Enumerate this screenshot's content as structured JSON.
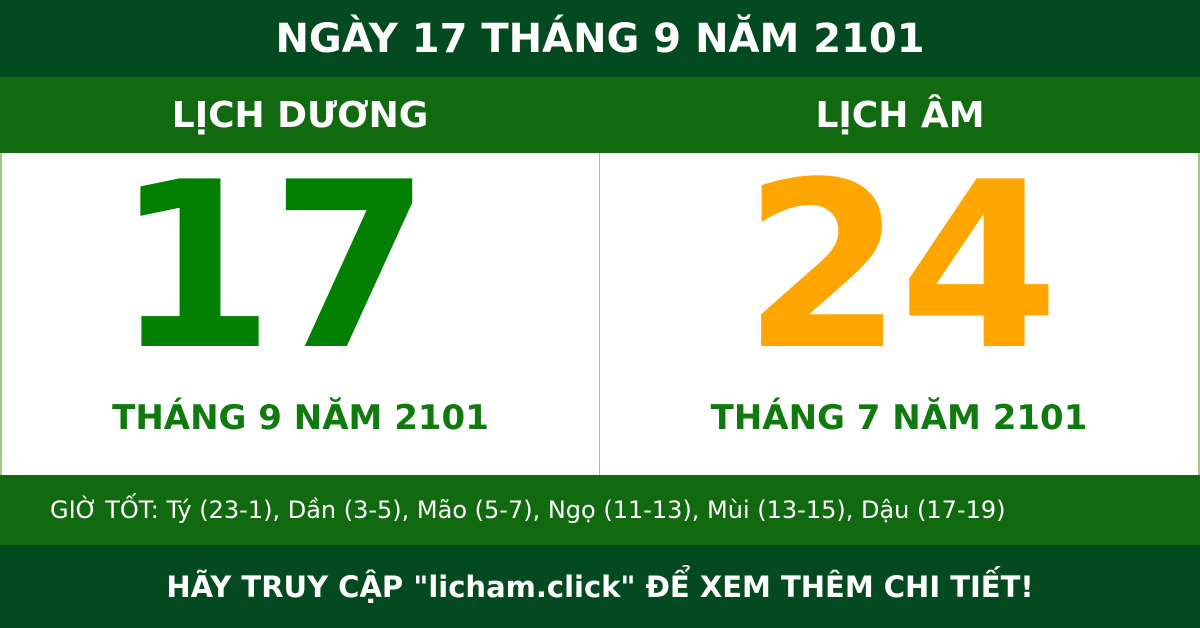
{
  "title": "NGÀY 17 THÁNG 9 NĂM 2101",
  "solar": {
    "heading": "LỊCH DƯƠNG",
    "day": "17",
    "month_year": "THÁNG 9 NĂM 2101"
  },
  "lunar": {
    "heading": "LỊCH ÂM",
    "day": "24",
    "month_year": "THÁNG 7 NĂM 2101"
  },
  "good_hours": "GIỜ TỐT: Tý (23-1), Dần (3-5), Mão (5-7), Ngọ (11-13), Mùi (13-15), Dậu (17-19)",
  "footer": "HÃY TRUY CẬP \"licham.click\" ĐỂ XEM THÊM CHI TIẾT!",
  "colors": {
    "dark_green": "#044a20",
    "green": "#116a0f",
    "solar_day": "#018001",
    "lunar_day": "#ffa500"
  }
}
